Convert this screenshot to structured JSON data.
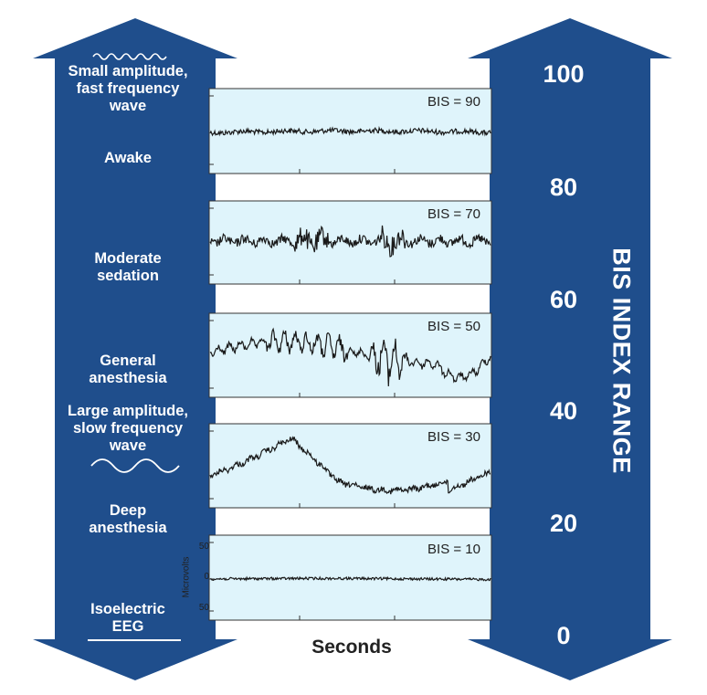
{
  "colors": {
    "arrow_fill": "#1f4e8c",
    "panel_fill": "#dff4fb",
    "trace": "#1a1a1a",
    "label_text": "#ffffff"
  },
  "left_arrow": {
    "labels": [
      {
        "id": "small-amplitude",
        "lines": [
          "Small amplitude,",
          "fast frequency",
          "wave"
        ]
      },
      {
        "id": "awake",
        "lines": [
          "Awake"
        ]
      },
      {
        "id": "moderate-sedation",
        "lines": [
          "Moderate",
          "sedation"
        ]
      },
      {
        "id": "general-anesthesia",
        "lines": [
          "General",
          "anesthesia"
        ]
      },
      {
        "id": "large-amplitude",
        "lines": [
          "Large amplitude,",
          "slow frequency",
          "wave"
        ]
      },
      {
        "id": "deep-anesthesia",
        "lines": [
          "Deep",
          "anesthesia"
        ]
      },
      {
        "id": "isoelectric",
        "lines": [
          "Isoelectric",
          "EEG"
        ]
      }
    ],
    "icons": [
      "fast-wave-icon",
      "slow-wave-icon",
      "flat-line-icon"
    ]
  },
  "right_arrow": {
    "title": "BIS INDEX RANGE",
    "ticks": [
      "100",
      "80",
      "60",
      "40",
      "20",
      "0"
    ]
  },
  "panels": [
    {
      "label": "BIS = 90",
      "bis": 90,
      "pattern": "low-amplitude fast"
    },
    {
      "label": "BIS = 70",
      "bis": 70,
      "pattern": "moderate amplitude"
    },
    {
      "label": "BIS = 50",
      "bis": 50,
      "pattern": "large amplitude bursts"
    },
    {
      "label": "BIS = 30",
      "bis": 30,
      "pattern": "large slow wave"
    },
    {
      "label": "BIS = 10",
      "bis": 10,
      "pattern": "near flat"
    }
  ],
  "y_axis": {
    "label": "Microvolts",
    "ticks": [
      "50",
      "0",
      "50"
    ]
  },
  "x_axis": {
    "label": "Seconds"
  }
}
